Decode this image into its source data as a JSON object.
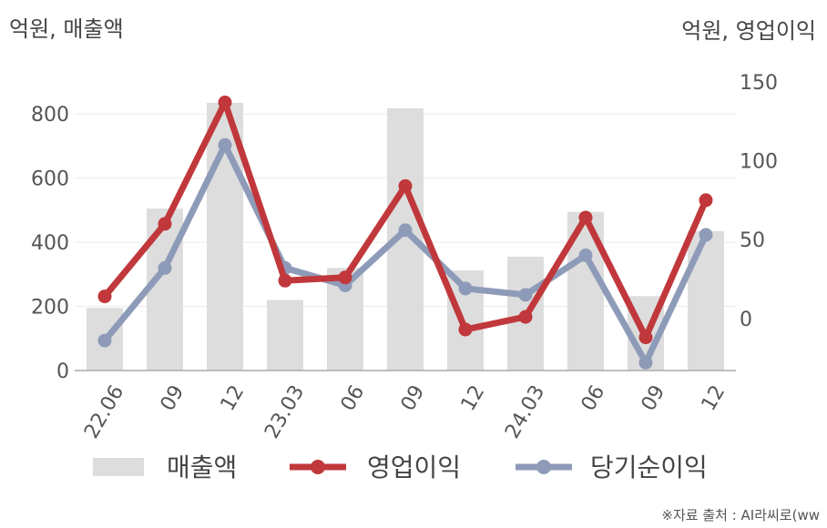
{
  "chart_data": {
    "type": "bar+line",
    "left_axis_unit": "억원, 매출액",
    "right_axis_unit": "억원, 영업이익",
    "categories": [
      "22.06",
      "09",
      "12",
      "23.03",
      "06",
      "09",
      "12",
      "24.03",
      "06",
      "09",
      "12"
    ],
    "y_left": {
      "min": 0,
      "max": 900,
      "ticks": [
        0,
        200,
        400,
        600,
        800
      ]
    },
    "y_right": {
      "min": -33,
      "max": 150,
      "ticks": [
        0,
        50,
        100,
        150
      ]
    },
    "series": [
      {
        "name": "매출액",
        "type": "bar",
        "axis": "left",
        "color": "#dddddd",
        "values": [
          195,
          505,
          835,
          220,
          320,
          818,
          312,
          355,
          495,
          232,
          435
        ]
      },
      {
        "name": "영업이익",
        "type": "line",
        "axis": "right",
        "color": "#c0383b",
        "values": [
          14,
          60,
          137,
          24,
          26,
          84,
          -7,
          1,
          64,
          -12,
          75
        ]
      },
      {
        "name": "당기순이익",
        "type": "line",
        "axis": "right",
        "color": "#8e9bb8",
        "values": [
          -14,
          32,
          110,
          32,
          21,
          56,
          19,
          15,
          40,
          -28,
          53
        ]
      }
    ],
    "grid": true,
    "legend_position": "bottom"
  },
  "footer": "※자료 출처 : AI라씨로(ww"
}
